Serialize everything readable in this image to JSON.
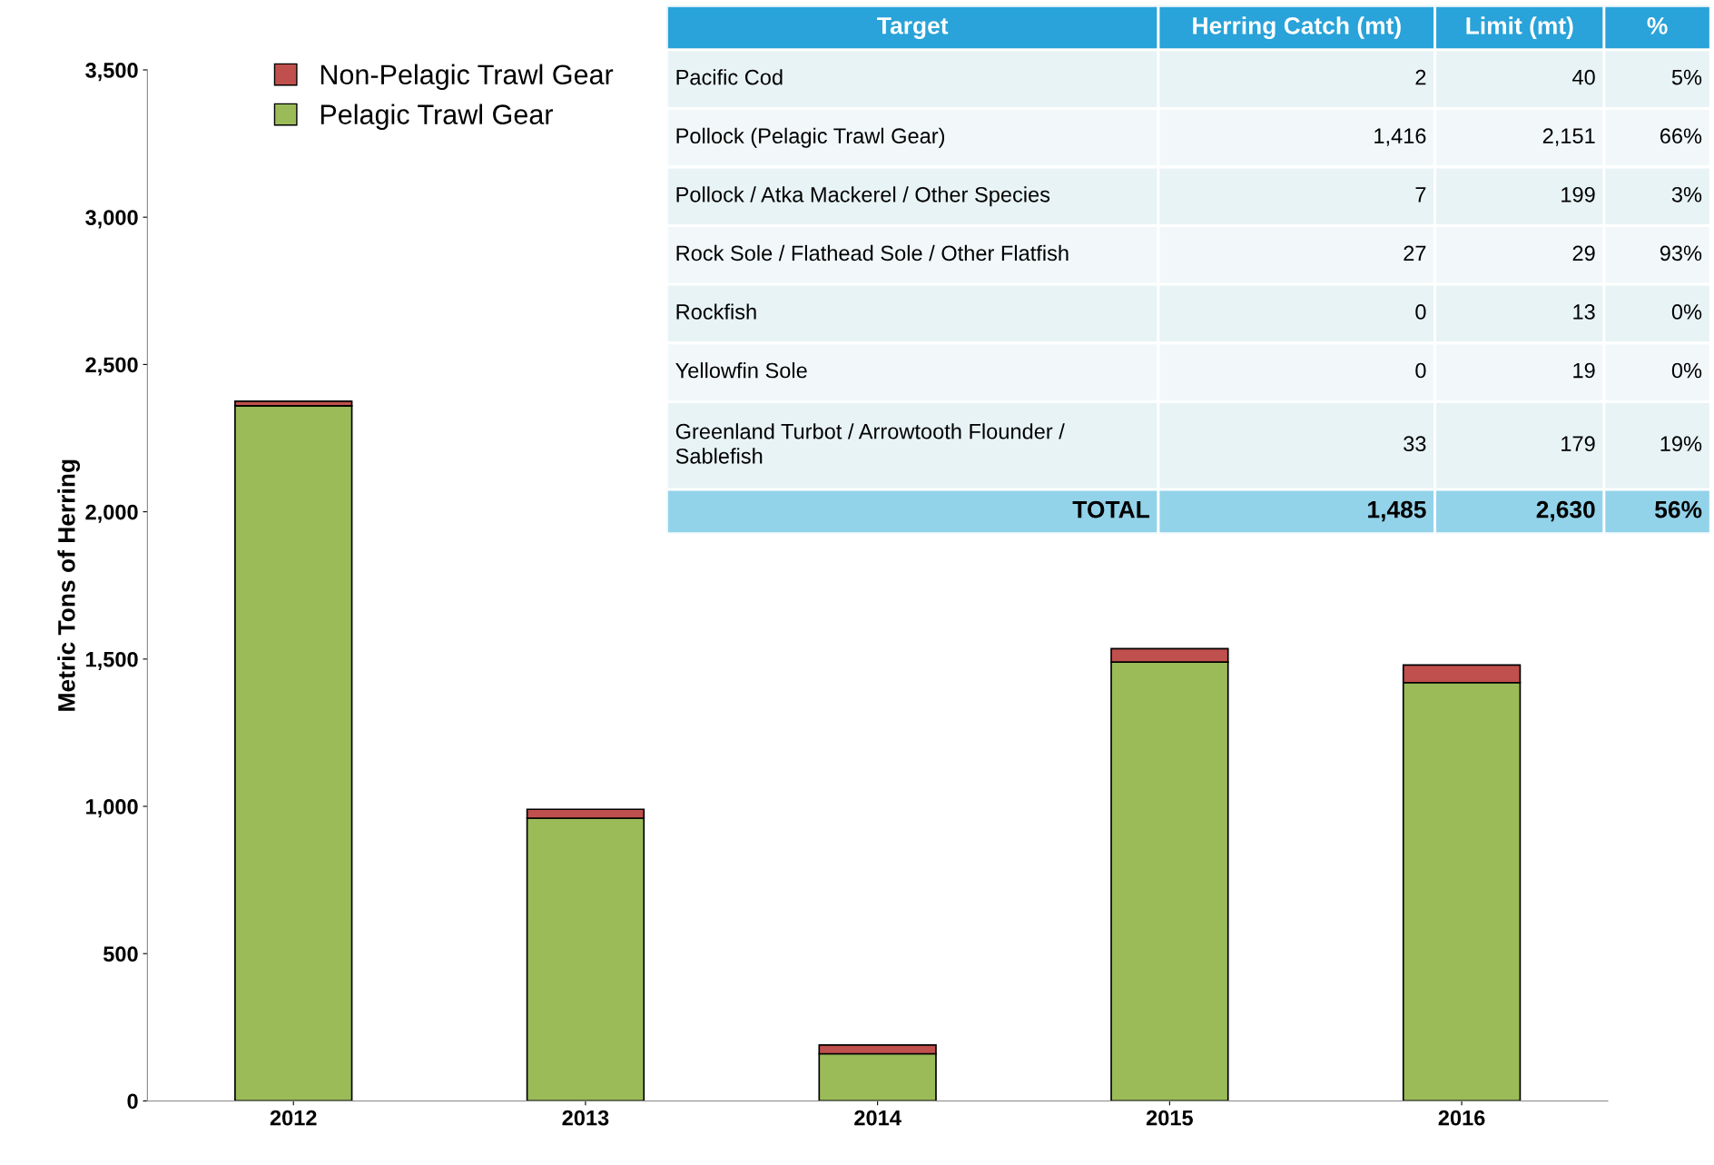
{
  "chart_data": [
    {
      "type": "bar",
      "ylabel": "Metric Tons of Herring",
      "categories": [
        "2012",
        "2013",
        "2014",
        "2015",
        "2016"
      ],
      "stacked": true,
      "series": [
        {
          "name": "Pelagic Trawl Gear",
          "color": "#9bbb59",
          "values": [
            2360,
            960,
            160,
            1490,
            1420
          ]
        },
        {
          "name": "Non-Pelagic Trawl Gear",
          "color": "#c0504d",
          "values": [
            15,
            30,
            30,
            45,
            60
          ]
        }
      ],
      "ylim": [
        0,
        3500
      ],
      "yticks": [
        {
          "value": 0,
          "label": "0"
        },
        {
          "value": 500,
          "label": "500"
        },
        {
          "value": 1000,
          "label": "1,000"
        },
        {
          "value": 1500,
          "label": "1,500"
        },
        {
          "value": 2000,
          "label": "2,000"
        },
        {
          "value": 2500,
          "label": "2,500"
        },
        {
          "value": 3000,
          "label": "3,000"
        },
        {
          "value": 3500,
          "label": "3,500"
        }
      ],
      "grid": false,
      "legend": "top left"
    },
    {
      "type": "other",
      "categories": [
        "Target",
        "Herring Catch (mt)",
        "Limit (mt)",
        "%"
      ],
      "cell_labels": [
        [
          "Pacific Cod",
          "2",
          "40",
          "5%"
        ],
        [
          "Pollock (Pelagic Trawl Gear)",
          "1,416",
          "2,151",
          "66%"
        ],
        [
          "Pollock / Atka Mackerel / Other Species",
          "7",
          "199",
          "3%"
        ],
        [
          "Rock Sole / Flathead Sole / Other Flatfish",
          "27",
          "29",
          "93%"
        ],
        [
          "Rockfish",
          "0",
          "13",
          "0%"
        ],
        [
          "Yellowfin Sole",
          "0",
          "19",
          "0%"
        ],
        [
          "Greenland Turbot / Arrowtooth Flounder /\nSablefish",
          "33",
          "179",
          "19%"
        ],
        [
          "TOTAL",
          "1,485",
          "2,630",
          "56%"
        ]
      ]
    }
  ]
}
